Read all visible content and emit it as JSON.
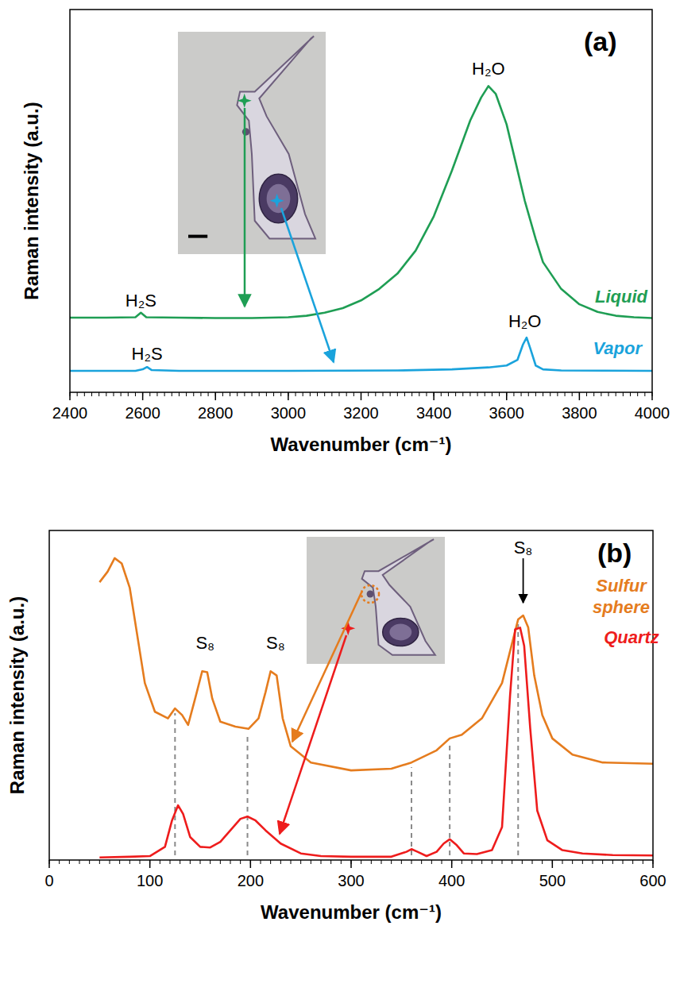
{
  "chart_data": [
    {
      "type": "line",
      "label": "(a)",
      "xlabel": "Wavenumber (cm⁻¹)",
      "ylabel": "Raman intensity (a.u.)",
      "xlim": [
        2400,
        4000
      ],
      "xticks": [
        2400,
        2600,
        2800,
        3000,
        3200,
        3400,
        3600,
        3800,
        4000
      ],
      "ylim": [
        0,
        100
      ],
      "tick_labels": "x",
      "series": [
        {
          "name": "Liquid",
          "color": "#1f9e54",
          "x": [
            2400,
            2500,
            2580,
            2595,
            2610,
            2700,
            2800,
            2900,
            3000,
            3050,
            3100,
            3150,
            3200,
            3250,
            3300,
            3350,
            3400,
            3450,
            3500,
            3530,
            3550,
            3570,
            3600,
            3620,
            3650,
            3680,
            3700,
            3750,
            3800,
            3850,
            3900,
            3950,
            4000
          ],
          "values": [
            19.5,
            19.5,
            19.6,
            20.8,
            19.6,
            19.5,
            19.4,
            19.4,
            19.6,
            20.0,
            20.8,
            22,
            24,
            27,
            31,
            37,
            46,
            58,
            71,
            77,
            80,
            78,
            70,
            62,
            50,
            40,
            34,
            27,
            23,
            21,
            20,
            19.6,
            19.4
          ]
        },
        {
          "name": "Vapor",
          "color": "#1aa3dc",
          "x": [
            2400,
            2580,
            2600,
            2612,
            2625,
            2700,
            3000,
            3300,
            3450,
            3550,
            3600,
            3630,
            3645,
            3655,
            3665,
            3680,
            3700,
            3750,
            4000
          ],
          "values": [
            5.6,
            5.6,
            6.0,
            6.6,
            5.8,
            5.6,
            5.6,
            5.7,
            6.0,
            6.5,
            7.0,
            8.5,
            12.5,
            14.3,
            11.5,
            7.0,
            6.0,
            5.7,
            5.6
          ]
        }
      ],
      "annotations": [
        {
          "text": "H₂S",
          "x": 2595,
          "y": 22.5
        },
        {
          "text": "H₂S",
          "x": 2612,
          "y": 8.5
        },
        {
          "text": "H₂O",
          "x": 3550,
          "y": 83
        },
        {
          "text": "H₂O",
          "x": 3650,
          "y": 17
        }
      ]
    },
    {
      "type": "line",
      "label": "(b)",
      "xlabel": "Wavenumber (cm⁻¹)",
      "ylabel": "Raman intensity (a.u.)",
      "xlim": [
        0,
        600
      ],
      "xticks": [
        0,
        100,
        200,
        300,
        400,
        500,
        600
      ],
      "ylim": [
        0,
        100
      ],
      "tick_labels": "x",
      "series": [
        {
          "name": "Sulfur sphere",
          "color": "#e57c1e",
          "x": [
            50,
            58,
            65,
            72,
            80,
            95,
            105,
            118,
            125,
            132,
            138,
            145,
            152,
            157,
            162,
            170,
            185,
            198,
            208,
            215,
            220,
            226,
            232,
            240,
            260,
            300,
            340,
            360,
            385,
            398,
            410,
            430,
            450,
            460,
            466,
            471,
            476,
            482,
            490,
            500,
            520,
            550,
            600
          ],
          "values": [
            84.3,
            87.5,
            91.6,
            90,
            82.6,
            53.7,
            45,
            43,
            46,
            44,
            41,
            49,
            57.3,
            57,
            49,
            42,
            40.5,
            39.8,
            43,
            51,
            57.3,
            56,
            43,
            34.5,
            29.6,
            27.2,
            27.7,
            29.6,
            33.3,
            36.9,
            38,
            43,
            53.7,
            65.8,
            73,
            74.2,
            70.6,
            56,
            44,
            36.9,
            32,
            29.6,
            29.2
          ]
        },
        {
          "name": "Quartz",
          "color": "#ee1c1c",
          "x": [
            50,
            80,
            100,
            115,
            122,
            128,
            133,
            140,
            150,
            160,
            170,
            180,
            190,
            197,
            205,
            215,
            230,
            250,
            270,
            300,
            340,
            355,
            360,
            366,
            375,
            385,
            392,
            398,
            405,
            412,
            425,
            440,
            450,
            458,
            463,
            468,
            472,
            478,
            485,
            495,
            510,
            530,
            560,
            600
          ],
          "values": [
            0.8,
            1.0,
            1.2,
            4,
            12,
            16.6,
            14,
            7,
            4,
            3.8,
            5.5,
            9,
            12.5,
            13.2,
            12,
            9,
            5,
            2,
            1.2,
            1,
            1,
            2.5,
            3.3,
            2.5,
            1.2,
            2.5,
            5,
            6.3,
            4.5,
            2,
            1.8,
            3,
            10,
            50,
            70,
            70.5,
            65,
            40,
            15,
            6,
            3,
            2,
            1.5,
            1.4
          ]
        }
      ],
      "dashed_lines": [
        125,
        197,
        360,
        398,
        466
      ],
      "annotations": [
        {
          "text": "S₈",
          "x": 155,
          "y": 64
        },
        {
          "text": "S₈",
          "x": 225,
          "y": 64
        },
        {
          "text": "S₈",
          "x": 471,
          "y": 93
        }
      ]
    }
  ]
}
